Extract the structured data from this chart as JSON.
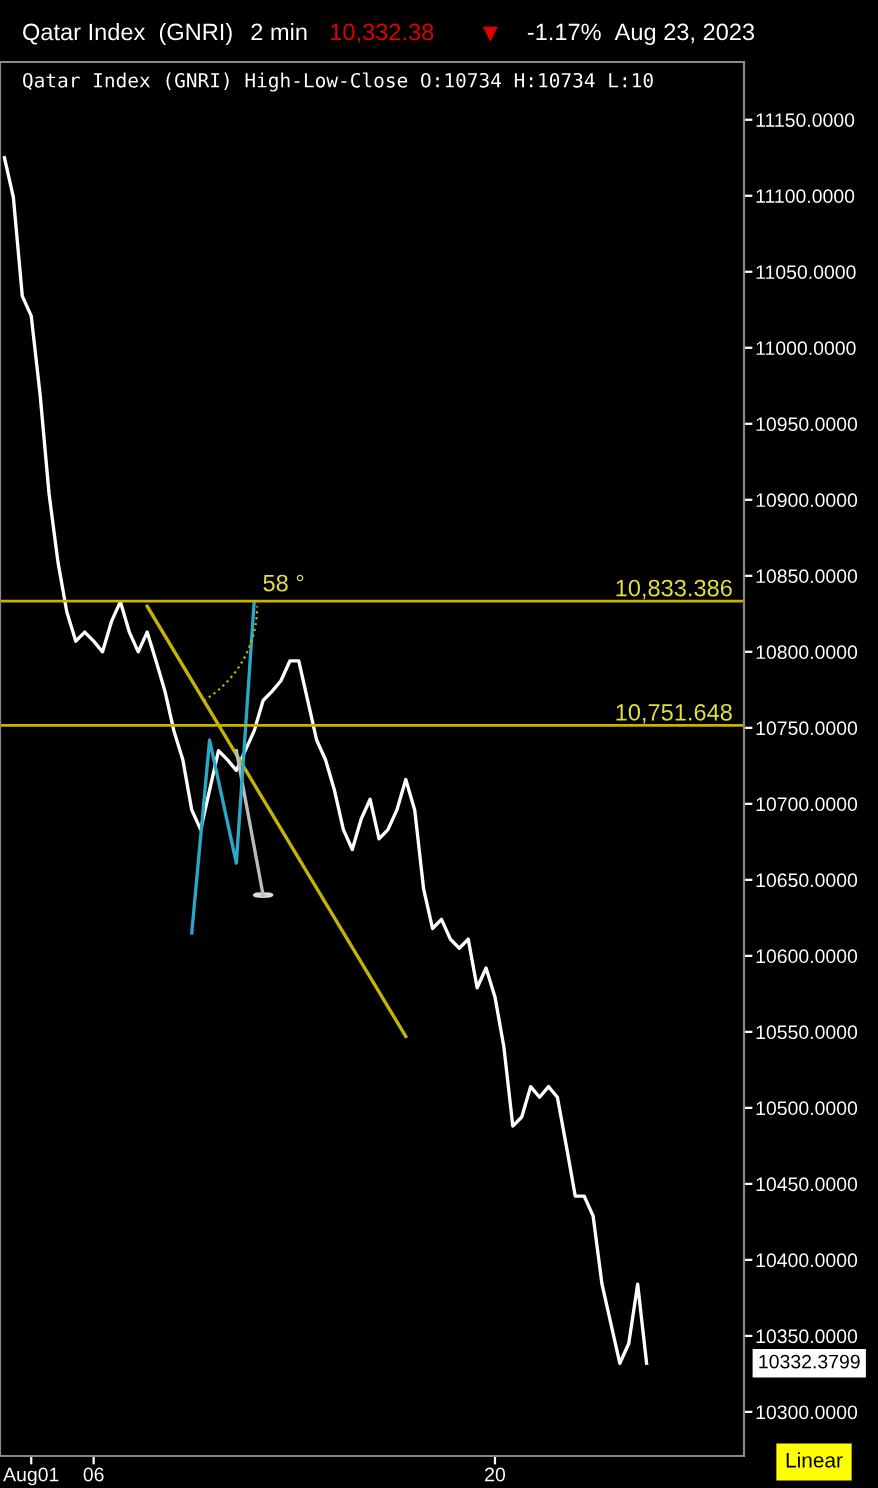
{
  "chart_data": {
    "type": "line",
    "title": "Qatar Index  (GNRI)",
    "subtitle": "Qatar Index (GNRI) High-Low-Close O:10734 H:10734 L:10",
    "annotations": [
      "2 min",
      "10,332.38",
      "▼",
      "-1.17%",
      "Aug 23, 2023",
      "10332.3799",
      "Linear",
      "58 °"
    ],
    "categories": [
      null,
      null,
      null,
      "Aug01",
      null,
      null,
      null,
      null,
      null,
      null,
      "06",
      null,
      null,
      null,
      null,
      null,
      null,
      null,
      null,
      null,
      null,
      null,
      null,
      null,
      null,
      null,
      null,
      null,
      null,
      null,
      null,
      null,
      null,
      null,
      null,
      null,
      null,
      null,
      null,
      null,
      null,
      null,
      null,
      null,
      null,
      null,
      null,
      null,
      null,
      null,
      null,
      null,
      null,
      null,
      null,
      "20",
      null,
      null,
      null,
      null,
      null,
      null,
      null,
      null,
      null,
      null,
      null,
      null,
      null,
      null,
      null,
      null,
      null
    ],
    "ylim": [
      10271,
      11188
    ],
    "yticks": [
      {
        "value": 10300,
        "label": "10300.0000"
      },
      {
        "value": 10350,
        "label": "10350.0000"
      },
      {
        "value": 10400,
        "label": "10400.0000"
      },
      {
        "value": 10450,
        "label": "10450.0000"
      },
      {
        "value": 10500,
        "label": "10500.0000"
      },
      {
        "value": 10550,
        "label": "10550.0000"
      },
      {
        "value": 10600,
        "label": "10600.0000"
      },
      {
        "value": 10650,
        "label": "10650.0000"
      },
      {
        "value": 10700,
        "label": "10700.0000"
      },
      {
        "value": 10750,
        "label": "10750.0000"
      },
      {
        "value": 10800,
        "label": "10800.0000"
      },
      {
        "value": 10850,
        "label": "10850.0000"
      },
      {
        "value": 10900,
        "label": "10900.0000"
      },
      {
        "value": 10950,
        "label": "10950.0000"
      },
      {
        "value": 11000,
        "label": "11000.0000"
      },
      {
        "value": 11050,
        "label": "11050.0000"
      },
      {
        "value": 11100,
        "label": "11100.0000"
      },
      {
        "value": 11150,
        "label": "11150.0000"
      }
    ],
    "grid": false,
    "ref_lines": [
      {
        "axis": "y",
        "value": 10833.386,
        "label": "10,833.386",
        "color": "#c8b400"
      },
      {
        "axis": "y",
        "value": 10751.648,
        "label": "10,751.648",
        "color": "#c8b400"
      }
    ],
    "series": [
      {
        "color": "#ffffff",
        "values": [
          11125,
          11099,
          11034,
          11021,
          10969,
          10904,
          10859,
          10826,
          10807,
          10813,
          10807,
          10800,
          10820,
          10833,
          10813,
          10800,
          10813,
          10794,
          10774,
          10748,
          10729,
          10696,
          10683,
          10709,
          10735,
          10729,
          10722,
          10735,
          10748,
          10768,
          10774,
          10781,
          10794,
          10794,
          10768,
          10742,
          10729,
          10709,
          10683,
          10670,
          10690,
          10703,
          10677,
          10683,
          10696,
          10716,
          10696,
          10644,
          10618,
          10624,
          10611,
          10605,
          10611,
          10579,
          10592,
          10573,
          10540,
          10488,
          10494,
          10514,
          10507,
          10514,
          10507,
          10475,
          10442,
          10442,
          10429,
          10384,
          10358,
          10332,
          10345,
          10384,
          10332
        ]
      },
      {
        "color": "#c8b400",
        "values": [
          null,
          null,
          null,
          null,
          null,
          null,
          null,
          null,
          null,
          null,
          null,
          null,
          null,
          null,
          null,
          null,
          10830,
          null,
          null,
          null,
          null,
          null,
          null,
          null,
          null,
          null,
          null,
          null,
          null,
          null,
          null,
          null,
          null,
          null,
          null,
          null,
          null,
          null,
          null,
          null,
          null,
          null,
          null,
          null,
          null,
          10547,
          null,
          null,
          null,
          null,
          null,
          null,
          null,
          null,
          null,
          null,
          null,
          null,
          null,
          null,
          null,
          null,
          null,
          null,
          null,
          null,
          null,
          null,
          null,
          null,
          null,
          null,
          null
        ]
      },
      {
        "color": "#bbbbbb",
        "values": [
          null,
          null,
          null,
          null,
          null,
          null,
          null,
          null,
          null,
          null,
          null,
          null,
          null,
          null,
          null,
          null,
          null,
          null,
          null,
          null,
          null,
          null,
          null,
          null,
          null,
          null,
          10735,
          null,
          null,
          10640,
          null,
          null,
          null,
          null,
          null,
          null,
          null,
          null,
          null,
          null,
          null,
          null,
          null,
          null,
          null,
          null,
          null,
          null,
          null,
          null,
          null,
          null,
          null,
          null,
          null,
          null,
          null,
          null,
          null,
          null,
          null,
          null,
          null,
          null,
          null,
          null,
          null,
          null,
          null,
          null,
          null,
          null,
          null
        ]
      },
      {
        "color": "#2aa8c8",
        "values": [
          null,
          null,
          null,
          null,
          null,
          null,
          null,
          null,
          null,
          null,
          null,
          null,
          null,
          null,
          null,
          null,
          null,
          null,
          null,
          null,
          null,
          10615,
          null,
          10742,
          null,
          null,
          10661,
          null,
          10833,
          null,
          null,
          null,
          null,
          null,
          null,
          null,
          null,
          null,
          null,
          null,
          null,
          null,
          null,
          null,
          null,
          null,
          null,
          null,
          null,
          null,
          null,
          null,
          null,
          null,
          null,
          null,
          null,
          null,
          null,
          null,
          null,
          null,
          null,
          null,
          null,
          null,
          null,
          null,
          null,
          null,
          null,
          null,
          null
        ]
      }
    ]
  }
}
